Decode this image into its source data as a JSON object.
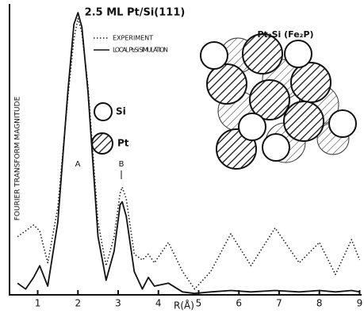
{
  "chart_data": {
    "type": "line",
    "title": "2.5 ML Pt/Si(111)",
    "x_label": "R(Å)",
    "y_label": "FOURIER TRANSFORM MAGNITUDE",
    "inset_title": "Pt₂Si (Fe₂P)",
    "inset_key": [
      "Si",
      "Pt"
    ],
    "annotations": [
      "A",
      "B"
    ],
    "x": [
      0.5,
      0.7,
      0.9,
      1.05,
      1.25,
      1.5,
      1.75,
      1.9,
      2.0,
      2.1,
      2.25,
      2.5,
      2.7,
      2.9,
      3.05,
      3.1,
      3.2,
      3.4,
      3.6,
      3.75,
      3.9,
      4.25,
      4.6,
      4.9,
      5.3,
      5.8,
      6.3,
      6.9,
      7.5,
      8.0,
      8.4,
      8.8,
      9.0
    ],
    "series": [
      {
        "name": "EXPERIMENT",
        "color": "#222222",
        "line_style": "dotted",
        "values": [
          20,
          22,
          24,
          22,
          11,
          30,
          68,
          88,
          95,
          90,
          72,
          25,
          10,
          20,
          35,
          37,
          33,
          14,
          12,
          14,
          11,
          18,
          8,
          2,
          8,
          21,
          10,
          23,
          11,
          18,
          7,
          19,
          12
        ]
      },
      {
        "name": "LOCAL Pt₂Si SIMULATION",
        "color": "#111111",
        "line_style": "solid",
        "values": [
          4,
          2,
          6,
          10,
          3,
          25,
          70,
          93,
          97,
          92,
          70,
          20,
          5,
          15,
          31,
          32,
          27,
          8,
          2,
          6,
          3,
          4,
          1,
          0.5,
          1,
          1.5,
          1,
          1.5,
          1,
          1.5,
          1,
          1.5,
          1
        ]
      }
    ],
    "xlim": [
      0.3,
      9.05
    ],
    "ylim": [
      0,
      100
    ],
    "xticks": [
      1,
      2,
      3,
      4,
      5,
      6,
      7,
      8,
      9
    ]
  }
}
